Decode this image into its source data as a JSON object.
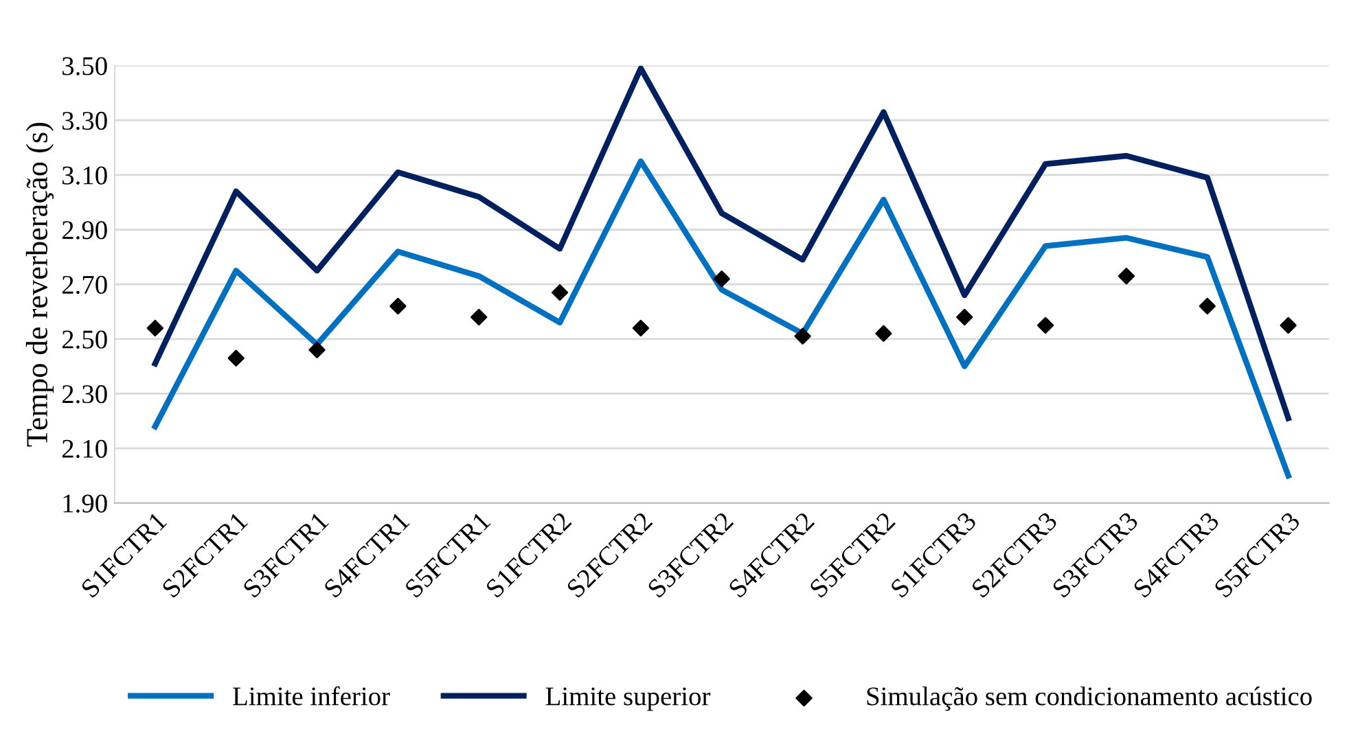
{
  "chart_data": {
    "type": "line",
    "ylabel": "Tempo de reverberação (s)",
    "categories": [
      "S1FCTR1",
      "S2FCTR1",
      "S3FCTR1",
      "S4FCTR1",
      "S5FCTR1",
      "S1FCTR2",
      "S2FCTR2",
      "S3FCTR2",
      "S4FCTR2",
      "S5FCTR2",
      "S1FCTR3",
      "S2FCTR3",
      "S3FCTR3",
      "S4FCTR3",
      "S5FCTR3"
    ],
    "series": [
      {
        "name": "Limite inferior",
        "color": "#0070c0",
        "values": [
          2.18,
          2.75,
          2.48,
          2.82,
          2.73,
          2.56,
          3.15,
          2.68,
          2.52,
          3.01,
          2.4,
          2.84,
          2.87,
          2.8,
          2.0
        ]
      },
      {
        "name": "Limite superior",
        "color": "#002060",
        "values": [
          2.41,
          3.04,
          2.75,
          3.11,
          3.02,
          2.83,
          3.49,
          2.96,
          2.79,
          3.33,
          2.66,
          3.14,
          3.17,
          3.09,
          2.21
        ]
      },
      {
        "name": "Simulação sem condicionamento acústico",
        "color": "#000000",
        "type": "scatter",
        "marker": "diamond",
        "values": [
          2.54,
          2.43,
          2.46,
          2.62,
          2.58,
          2.67,
          2.54,
          2.72,
          2.51,
          2.52,
          2.58,
          2.55,
          2.73,
          2.62,
          2.55
        ]
      }
    ],
    "ylim": [
      1.9,
      3.5
    ],
    "yticks": [
      {
        "value": 1.9,
        "label": "1.90"
      },
      {
        "value": 2.1,
        "label": "2.10"
      },
      {
        "value": 2.3,
        "label": "2.30"
      },
      {
        "value": 2.5,
        "label": "2.50"
      },
      {
        "value": 2.7,
        "label": "2.70"
      },
      {
        "value": 2.9,
        "label": "2.90"
      },
      {
        "value": 3.1,
        "label": "3.10"
      },
      {
        "value": 3.3,
        "label": "3.30"
      },
      {
        "value": 3.5,
        "label": "3.50"
      }
    ],
    "grid": "y",
    "legend": "bottom"
  }
}
